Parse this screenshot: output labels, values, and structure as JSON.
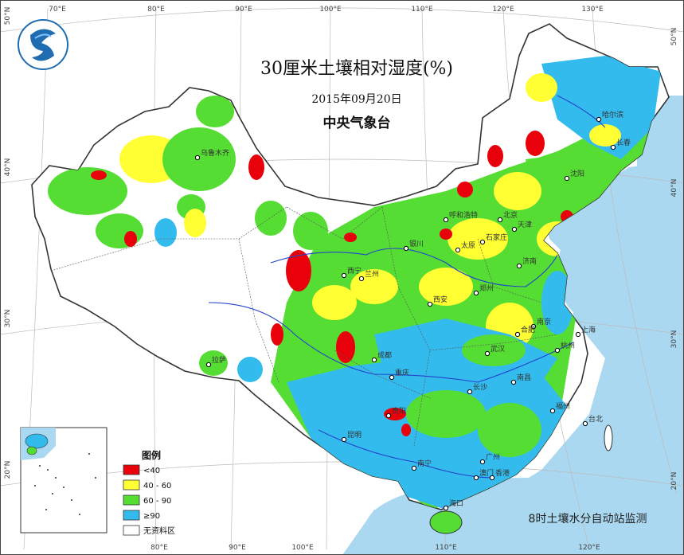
{
  "map": {
    "title": "30厘米土壤相对湿度(%)",
    "date": "2015年09月20日",
    "issuer": "中央气象台",
    "footnote": "8时土壤水分自动站监测"
  },
  "legend": {
    "title": "图例",
    "items": [
      {
        "label": "<40",
        "color": "#e8000b"
      },
      {
        "label": "40 - 60",
        "color": "#ffff33"
      },
      {
        "label": "60 - 90",
        "color": "#55dd33"
      },
      {
        "label": "≥90",
        "color": "#33bbee"
      },
      {
        "label": "无资料区",
        "color": "#ffffff"
      }
    ]
  },
  "axes": {
    "top_ticks": [
      "70°E",
      "80°E",
      "90°E",
      "100°E",
      "110°E",
      "120°E",
      "130°E"
    ],
    "bottom_ticks": [
      "80°E",
      "90°E",
      "100°E",
      "110°E",
      "120°E"
    ],
    "left_ticks": [
      "50°N",
      "40°N",
      "30°N",
      "20°N"
    ],
    "right_ticks": [
      "50°N",
      "40°N",
      "30°N",
      "20°N"
    ]
  },
  "cities": [
    "哈尔滨",
    "长春",
    "沈阳",
    "乌鲁木齐",
    "呼和浩特",
    "北京",
    "天津",
    "石家庄",
    "太原",
    "济南",
    "银川",
    "西宁",
    "兰州",
    "郑州",
    "西安",
    "南京",
    "合肥",
    "上海",
    "武汉",
    "杭州",
    "成都",
    "重庆",
    "长沙",
    "南昌",
    "福州",
    "台北",
    "贵阳",
    "昆明",
    "拉萨",
    "南宁",
    "广州",
    "澳门",
    "香港",
    "海口"
  ],
  "colors": {
    "sea": "#a9d8f0",
    "no_data": "#ffffff",
    "border": "#333333",
    "river": "#2244cc"
  }
}
